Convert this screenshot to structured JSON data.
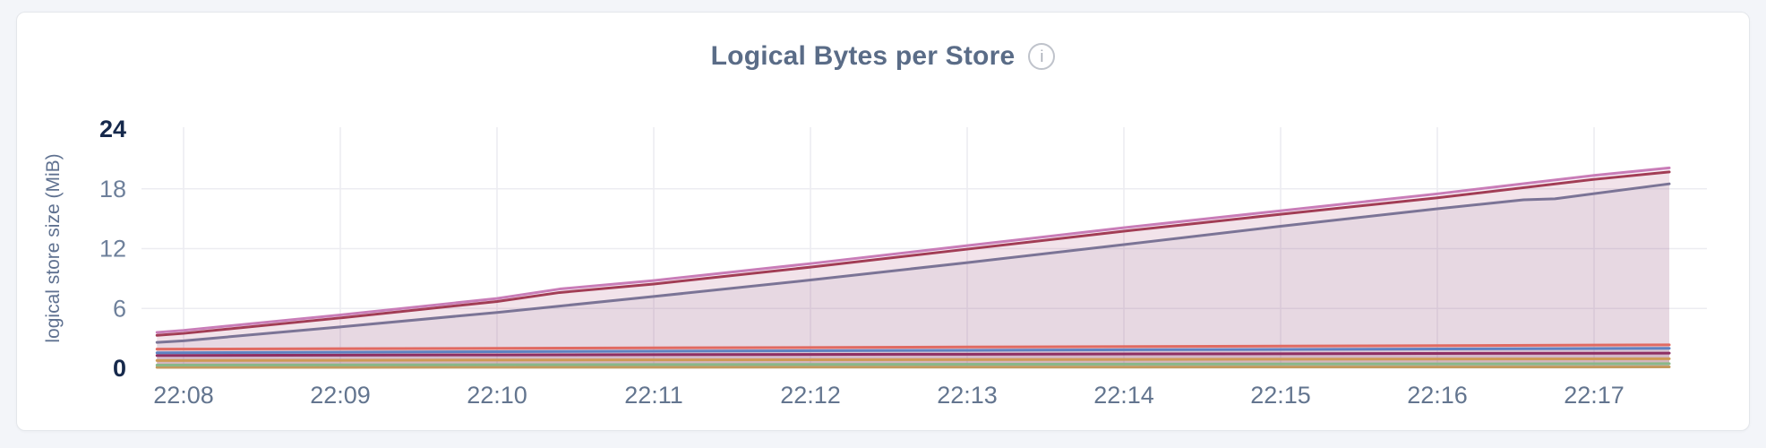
{
  "page": {
    "background": "#f3f5f9"
  },
  "card": {
    "background": "#ffffff",
    "border_color": "#e4e7eb"
  },
  "header": {
    "title": "Logical Bytes per Store",
    "title_color": "#5a6c87",
    "info_icon_glyph": "i"
  },
  "chart_data": {
    "type": "area",
    "title": "Logical Bytes per Store",
    "xlabel": "",
    "ylabel": "logical store size (MiB)",
    "ylim": [
      0,
      24
    ],
    "y_ticks": [
      0,
      6,
      12,
      18,
      24
    ],
    "x_ticks": [
      "22:08",
      "22:09",
      "22:10",
      "22:11",
      "22:12",
      "22:13",
      "22:14",
      "22:15",
      "22:16",
      "22:17"
    ],
    "x_minutes_range": [
      -0.17,
      9.48
    ],
    "grid": "both",
    "legend_position": "none",
    "fill_opacity": 0.09,
    "grid_color": "#ececf1",
    "tick_color": "#6e809b",
    "tick_strong_color": "#16294c",
    "series": [
      {
        "id": "store-orchid",
        "color": "#c97db8",
        "points": [
          [
            -0.17,
            3.6
          ],
          [
            0,
            3.8
          ],
          [
            1,
            5.35
          ],
          [
            2,
            7.0
          ],
          [
            2.4,
            7.95
          ],
          [
            3,
            8.8
          ],
          [
            4,
            10.5
          ],
          [
            5,
            12.3
          ],
          [
            6,
            14.1
          ],
          [
            7,
            15.8
          ],
          [
            8,
            17.5
          ],
          [
            9,
            19.35
          ],
          [
            9.48,
            20.1
          ]
        ]
      },
      {
        "id": "store-maroon",
        "color": "#a23d55",
        "points": [
          [
            -0.17,
            3.3
          ],
          [
            0,
            3.5
          ],
          [
            1,
            5.05
          ],
          [
            2,
            6.7
          ],
          [
            2.4,
            7.6
          ],
          [
            3,
            8.45
          ],
          [
            4,
            10.15
          ],
          [
            5,
            11.95
          ],
          [
            6,
            13.75
          ],
          [
            7,
            15.45
          ],
          [
            8,
            17.1
          ],
          [
            9,
            18.95
          ],
          [
            9.48,
            19.7
          ]
        ]
      },
      {
        "id": "store-slate",
        "color": "#7b7496",
        "points": [
          [
            -0.17,
            2.6
          ],
          [
            0,
            2.75
          ],
          [
            1,
            4.15
          ],
          [
            2,
            5.6
          ],
          [
            3,
            7.2
          ],
          [
            4,
            8.85
          ],
          [
            5,
            10.6
          ],
          [
            6,
            12.4
          ],
          [
            7,
            14.25
          ],
          [
            8,
            16.0
          ],
          [
            8.55,
            16.9
          ],
          [
            8.75,
            17.0
          ],
          [
            9.48,
            18.5
          ]
        ]
      },
      {
        "id": "store-salmon",
        "color": "#e06a62",
        "points": [
          [
            -0.17,
            1.92
          ],
          [
            2,
            2.0
          ],
          [
            5,
            2.13
          ],
          [
            7,
            2.22
          ],
          [
            9.48,
            2.35
          ]
        ]
      },
      {
        "id": "store-blue",
        "color": "#5f82c1",
        "points": [
          [
            -0.17,
            1.55
          ],
          [
            2,
            1.66
          ],
          [
            5,
            1.8
          ],
          [
            9.48,
            2.0
          ]
        ]
      },
      {
        "id": "store-wine",
        "color": "#8e2f63",
        "points": [
          [
            -0.17,
            1.28
          ],
          [
            2,
            1.34
          ],
          [
            5,
            1.41
          ],
          [
            9.48,
            1.52
          ]
        ]
      },
      {
        "id": "store-orange",
        "color": "#cf9a55",
        "points": [
          [
            -0.17,
            0.78
          ],
          [
            3,
            0.84
          ],
          [
            9.48,
            0.95
          ]
        ]
      },
      {
        "id": "store-green",
        "color": "#88b888",
        "points": [
          [
            -0.17,
            0.32
          ],
          [
            3,
            0.37
          ],
          [
            9.48,
            0.46
          ]
        ]
      },
      {
        "id": "store-gold",
        "color": "#c39a5e",
        "points": [
          [
            -0.17,
            0.09
          ],
          [
            9.48,
            0.13
          ]
        ]
      }
    ]
  }
}
